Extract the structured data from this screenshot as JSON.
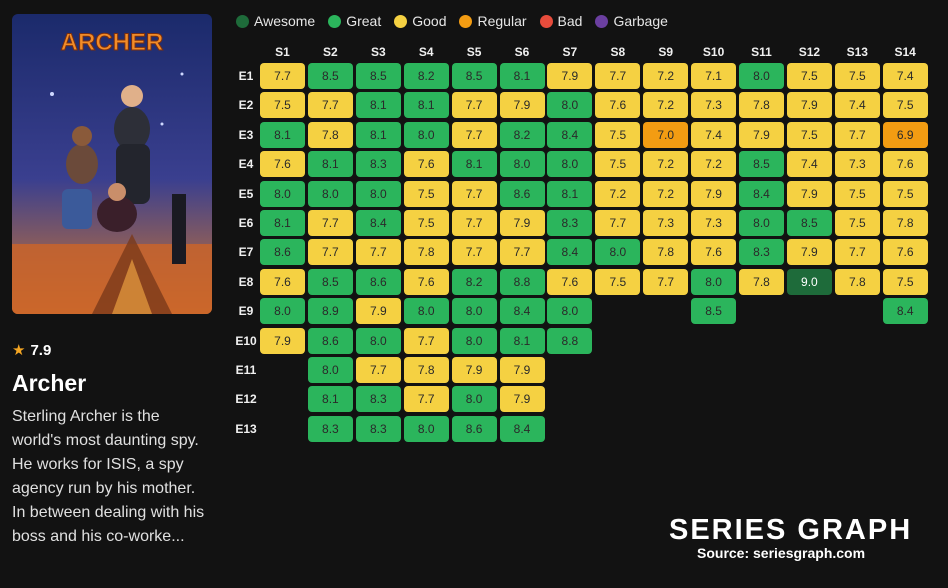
{
  "colors": {
    "awesome": "#1e6b3a",
    "great": "#2bb55c",
    "good": "#f5d142",
    "regular": "#f39c12",
    "bad": "#e74c3c",
    "garbage": "#6b3fa0"
  },
  "legend": [
    {
      "label": "Awesome",
      "color": "#1e6b3a"
    },
    {
      "label": "Great",
      "color": "#2bb55c"
    },
    {
      "label": "Good",
      "color": "#f5d142"
    },
    {
      "label": "Regular",
      "color": "#f39c12"
    },
    {
      "label": "Bad",
      "color": "#e74c3c"
    },
    {
      "label": "Garbage",
      "color": "#6b3fa0"
    }
  ],
  "show": {
    "poster_title": "ARCHER",
    "rating": "7.9",
    "title": "Archer",
    "description": "Sterling Archer is the world's most daunting spy. He works for ISIS, a spy agency run by his mother. In between dealing with his boss and his co-worke..."
  },
  "brand": {
    "name": "SERIES GRAPH",
    "source": "Source: seriesgraph.com"
  },
  "chart_data": {
    "type": "heatmap",
    "title": "",
    "x_labels": [
      "S1",
      "S2",
      "S3",
      "S4",
      "S5",
      "S6",
      "S7",
      "S8",
      "S9",
      "S10",
      "S11",
      "S12",
      "S13",
      "S14"
    ],
    "y_labels": [
      "E1",
      "E2",
      "E3",
      "E4",
      "E5",
      "E6",
      "E7",
      "E8",
      "E9",
      "E10",
      "E11",
      "E12",
      "E13"
    ],
    "rating_bands": [
      {
        "name": "Awesome",
        "min": 9.0
      },
      {
        "name": "Great",
        "min": 8.0
      },
      {
        "name": "Good",
        "min": 7.1
      },
      {
        "name": "Regular",
        "min": 6.0
      }
    ],
    "seasons": [
      [
        "7.7",
        "7.5",
        "8.1",
        "7.6",
        "8.0",
        "8.1",
        "8.6",
        "7.6",
        "8.0",
        "7.9"
      ],
      [
        "8.5",
        "7.7",
        "7.8",
        "8.1",
        "8.0",
        "7.7",
        "7.7",
        "8.5",
        "8.9",
        "8.6",
        "8.0",
        "8.1",
        "8.3"
      ],
      [
        "8.5",
        "8.1",
        "8.1",
        "8.3",
        "8.0",
        "8.4",
        "7.7",
        "8.6",
        "7.9",
        "8.0",
        "7.7",
        "8.3",
        "8.3"
      ],
      [
        "8.2",
        "8.1",
        "8.0",
        "7.6",
        "7.5",
        "7.5",
        "7.8",
        "7.6",
        "8.0",
        "7.7",
        "7.8",
        "7.7",
        "8.0"
      ],
      [
        "8.5",
        "7.7",
        "7.7",
        "8.1",
        "7.7",
        "7.7",
        "7.7",
        "8.2",
        "8.0",
        "8.0",
        "7.9",
        "8.0",
        "8.6"
      ],
      [
        "8.1",
        "7.9",
        "8.2",
        "8.0",
        "8.6",
        "7.9",
        "7.7",
        "8.8",
        "8.4",
        "8.1",
        "7.9",
        "7.9",
        "8.4"
      ],
      [
        "7.9",
        "8.0",
        "8.4",
        "8.0",
        "8.1",
        "8.3",
        "8.4",
        "7.6",
        "8.0",
        "8.8"
      ],
      [
        "7.7",
        "7.6",
        "7.5",
        "7.5",
        "7.2",
        "7.7",
        "8.0",
        "7.5"
      ],
      [
        "7.2",
        "7.2",
        "7.0",
        "7.2",
        "7.2",
        "7.3",
        "7.8",
        "7.7"
      ],
      [
        "7.1",
        "7.3",
        "7.4",
        "7.2",
        "7.9",
        "7.3",
        "7.6",
        "8.0",
        "8.5"
      ],
      [
        "8.0",
        "7.8",
        "7.9",
        "8.5",
        "8.4",
        "8.0",
        "8.3",
        "7.8"
      ],
      [
        "7.5",
        "7.9",
        "7.5",
        "7.4",
        "7.9",
        "8.5",
        "7.9",
        "9.0"
      ],
      [
        "7.5",
        "7.4",
        "7.7",
        "7.3",
        "7.5",
        "7.5",
        "7.7",
        "7.8"
      ],
      [
        "7.4",
        "7.5",
        "6.9",
        "7.6",
        "7.5",
        "7.8",
        "7.6",
        "7.5",
        "8.4"
      ]
    ]
  }
}
